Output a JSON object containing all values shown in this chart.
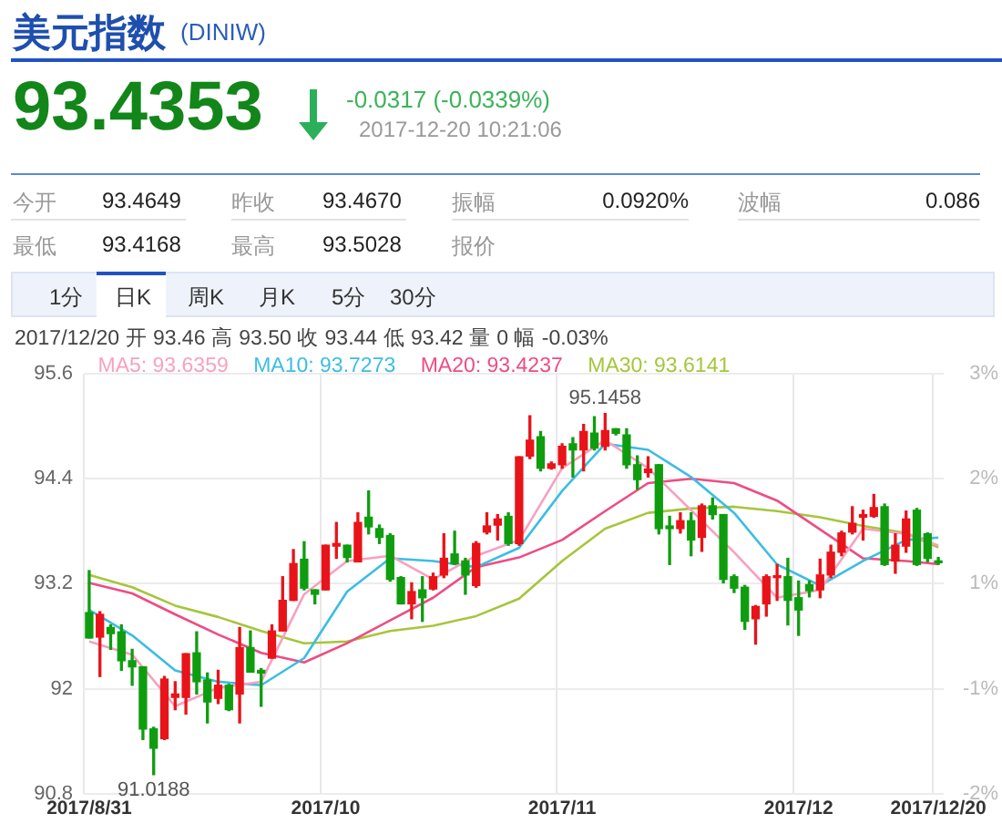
{
  "chart_data": [
    {
      "type": "other",
      "title": "美元指数",
      "subtitle": "(DINIW)",
      "annotations": [
        "93.4353",
        "-0.0317 (-0.0339%)",
        "2017-12-20 10:21:06",
        "今开",
        "93.4649",
        "昨收",
        "93.4670",
        "振幅",
        "0.0920%",
        "波幅",
        "0.086",
        "最低",
        "93.4168",
        "最高",
        "93.5028",
        "报价",
        "1分",
        "日K",
        "周K",
        "月K",
        "5分",
        "30分"
      ]
    },
    {
      "type": "candlestick",
      "categories": [
        "2017/8/31",
        null,
        null,
        null,
        null,
        null,
        null,
        null,
        null,
        null,
        null,
        null,
        null,
        null,
        null,
        null,
        null,
        null,
        null,
        null,
        null,
        null,
        "2017/10",
        null,
        null,
        null,
        null,
        null,
        null,
        null,
        null,
        null,
        null,
        null,
        null,
        null,
        null,
        null,
        null,
        null,
        null,
        null,
        null,
        null,
        "2017/11",
        null,
        null,
        null,
        null,
        null,
        null,
        null,
        null,
        null,
        null,
        null,
        null,
        null,
        null,
        null,
        null,
        null,
        null,
        null,
        null,
        null,
        "2017/12",
        null,
        null,
        null,
        null,
        null,
        null,
        null,
        null,
        null,
        null,
        null,
        null,
        "2017/12/20"
      ],
      "ohlc": [
        [
          92.87,
          93.35,
          92.58,
          92.58
        ],
        [
          92.59,
          92.88,
          92.14,
          92.85
        ],
        [
          92.7,
          92.73,
          92.45,
          92.63
        ],
        [
          92.65,
          92.73,
          92.21,
          92.32
        ],
        [
          92.32,
          92.45,
          92.04,
          92.25
        ],
        [
          92.25,
          92.25,
          91.42,
          91.54
        ],
        [
          91.54,
          91.56,
          91.0188,
          91.32
        ],
        [
          91.43,
          92.14,
          91.42,
          92.11
        ],
        [
          91.9,
          92.08,
          91.76,
          91.94
        ],
        [
          91.9,
          92.4,
          91.71,
          92.4
        ],
        [
          92.41,
          92.65,
          91.94,
          92.08
        ],
        [
          92.1,
          92.18,
          91.61,
          91.85
        ],
        [
          91.89,
          92.21,
          91.83,
          92.04
        ],
        [
          92.04,
          92.05,
          91.75,
          91.76
        ],
        [
          91.94,
          92.7,
          91.61,
          92.47
        ],
        [
          92.47,
          92.66,
          92.19,
          92.19
        ],
        [
          92.21,
          92.23,
          91.8,
          92.18
        ],
        [
          92.35,
          92.73,
          92.35,
          92.66
        ],
        [
          92.66,
          93.28,
          92.66,
          93.01
        ],
        [
          93.01,
          93.59,
          93.01,
          93.43
        ],
        [
          93.48,
          93.68,
          93.13,
          93.15
        ],
        [
          93.13,
          93.13,
          92.97,
          93.08
        ],
        [
          93.13,
          93.64,
          93.13,
          93.64
        ],
        [
          93.63,
          93.9,
          93.49,
          93.66
        ],
        [
          93.64,
          93.64,
          93.45,
          93.5
        ],
        [
          93.45,
          94.01,
          93.45,
          93.9
        ],
        [
          93.96,
          94.26,
          93.77,
          93.85
        ],
        [
          93.83,
          93.87,
          93.66,
          93.73
        ],
        [
          93.75,
          93.77,
          93.23,
          93.25
        ],
        [
          93.27,
          93.28,
          92.97,
          92.97
        ],
        [
          92.97,
          93.21,
          92.8,
          93.11
        ],
        [
          93.13,
          93.28,
          92.77,
          93.04
        ],
        [
          93.14,
          93.32,
          93.13,
          93.28
        ],
        [
          93.3,
          93.77,
          93.27,
          93.49
        ],
        [
          93.54,
          93.8,
          93.42,
          93.43
        ],
        [
          93.46,
          93.49,
          93.08,
          93.3
        ],
        [
          93.18,
          93.68,
          93.16,
          93.66
        ],
        [
          93.79,
          94.01,
          93.77,
          93.86
        ],
        [
          93.87,
          93.99,
          93.7,
          93.94
        ],
        [
          93.97,
          94.01,
          93.64,
          93.66
        ],
        [
          93.66,
          94.65,
          93.64,
          94.65
        ],
        [
          94.66,
          95.12,
          94.63,
          94.84
        ],
        [
          94.88,
          94.94,
          94.49,
          94.52
        ],
        [
          94.52,
          94.59,
          94.51,
          94.57
        ],
        [
          94.56,
          94.8,
          94.52,
          94.77
        ],
        [
          94.8,
          94.87,
          94.42,
          94.73
        ],
        [
          94.73,
          95.02,
          94.49,
          94.94
        ],
        [
          94.92,
          95.11,
          94.73,
          94.75
        ],
        [
          94.77,
          95.1458,
          94.73,
          94.95
        ],
        [
          94.97,
          94.97,
          94.9,
          94.92
        ],
        [
          94.9,
          94.97,
          94.52,
          94.56
        ],
        [
          94.56,
          94.66,
          94.28,
          94.39
        ],
        [
          94.47,
          94.65,
          94.42,
          94.51
        ],
        [
          94.56,
          94.56,
          93.77,
          93.83
        ],
        [
          93.86,
          93.97,
          93.42,
          93.83
        ],
        [
          93.83,
          94.01,
          93.78,
          93.92
        ],
        [
          93.92,
          94.01,
          93.52,
          93.7
        ],
        [
          93.73,
          94.11,
          93.57,
          94.09
        ],
        [
          94.09,
          94.18,
          93.94,
          93.99
        ],
        [
          93.99,
          93.99,
          93.21,
          93.25
        ],
        [
          93.28,
          93.3,
          93.1,
          93.15
        ],
        [
          93.16,
          93.18,
          92.68,
          92.77
        ],
        [
          92.8,
          92.95,
          92.51,
          92.94
        ],
        [
          92.97,
          93.3,
          92.83,
          93.28
        ],
        [
          93.27,
          93.42,
          93.01,
          93.28
        ],
        [
          93.28,
          93.49,
          92.73,
          93.01
        ],
        [
          93.04,
          93.23,
          92.61,
          92.9
        ],
        [
          93.19,
          93.23,
          93.05,
          93.12
        ],
        [
          93.13,
          93.48,
          93.04,
          93.3
        ],
        [
          93.3,
          93.64,
          93.27,
          93.56
        ],
        [
          93.56,
          93.8,
          93.52,
          93.78
        ],
        [
          93.79,
          94.08,
          93.77,
          93.89
        ],
        [
          93.96,
          94.04,
          93.7,
          93.99
        ],
        [
          93.97,
          94.22,
          93.96,
          94.07
        ],
        [
          94.08,
          94.11,
          93.41,
          93.42
        ],
        [
          93.46,
          93.77,
          93.32,
          93.64
        ],
        [
          93.63,
          94.03,
          93.56,
          93.94
        ],
        [
          94.04,
          94.06,
          93.41,
          93.42
        ],
        [
          93.77,
          93.78,
          93.45,
          93.49
        ],
        [
          93.46,
          93.5,
          93.42,
          93.44
        ]
      ],
      "colors": [
        "#0f9d0f",
        "#e8141a",
        "#0f9d0f",
        "#0f9d0f",
        "#0f9d0f",
        "#0f9d0f",
        "#0f9d0f",
        "#e8141a",
        "#e8141a",
        "#e8141a",
        "#0f9d0f",
        "#0f9d0f",
        "#e8141a",
        "#0f9d0f",
        "#e8141a",
        "#0f9d0f",
        "#0f9d0f",
        "#e8141a",
        "#e8141a",
        "#e8141a",
        "#0f9d0f",
        "#0f9d0f",
        "#e8141a",
        "#e8141a",
        "#0f9d0f",
        "#e8141a",
        "#0f9d0f",
        "#0f9d0f",
        "#0f9d0f",
        "#0f9d0f",
        "#e8141a",
        "#0f9d0f",
        "#e8141a",
        "#e8141a",
        "#0f9d0f",
        "#0f9d0f",
        "#e8141a",
        "#e8141a",
        "#e8141a",
        "#0f9d0f",
        "#e8141a",
        "#e8141a",
        "#0f9d0f",
        "#e8141a",
        "#e8141a",
        "#0f9d0f",
        "#e8141a",
        "#0f9d0f",
        "#e8141a",
        "#0f9d0f",
        "#0f9d0f",
        "#0f9d0f",
        "#e8141a",
        "#0f9d0f",
        "#0f9d0f",
        "#e8141a",
        "#0f9d0f",
        "#e8141a",
        "#0f9d0f",
        "#0f9d0f",
        "#0f9d0f",
        "#0f9d0f",
        "#e8141a",
        "#e8141a",
        "#e8141a",
        "#0f9d0f",
        "#0f9d0f",
        "#0f9d0f",
        "#e8141a",
        "#e8141a",
        "#e8141a",
        "#e8141a",
        "#e8141a",
        "#e8141a",
        "#0f9d0f",
        "#e8141a",
        "#e8141a",
        "#0f9d0f",
        "#0f9d0f",
        "#0f9d0f"
      ],
      "series": [
        {
          "type": "line",
          "name": "MA5: 93.6359",
          "color": "#f7a1bf",
          "values": [
            92.54,
            null,
            null,
            null,
            92.39,
            null,
            null,
            null,
            91.8,
            null,
            null,
            null,
            92.01,
            null,
            null,
            null,
            92.08,
            null,
            null,
            null,
            93.08,
            null,
            null,
            null,
            93.46,
            null,
            null,
            null,
            93.52,
            null,
            null,
            null,
            93.25,
            null,
            null,
            null,
            93.52,
            null,
            null,
            null,
            93.7,
            null,
            null,
            null,
            94.52,
            null,
            null,
            null,
            94.84,
            null,
            null,
            null,
            94.52,
            null,
            null,
            null,
            94.04,
            null,
            null,
            null,
            93.56,
            null,
            null,
            null,
            93.04,
            null,
            null,
            null,
            93.13,
            null,
            null,
            null,
            93.83,
            null,
            null,
            null,
            93.77,
            null,
            null,
            93.6359
          ]
        },
        {
          "type": "line",
          "name": "MA10: 93.7273",
          "color": "#3bbde3",
          "values": [
            92.9,
            null,
            null,
            null,
            92.61,
            null,
            null,
            null,
            92.21,
            null,
            null,
            null,
            92.08,
            null,
            null,
            null,
            92.04,
            null,
            null,
            null,
            92.35,
            null,
            null,
            null,
            93.11,
            null,
            null,
            null,
            93.49,
            null,
            null,
            null,
            93.46,
            null,
            null,
            null,
            93.39,
            null,
            null,
            null,
            93.61,
            null,
            null,
            null,
            94.26,
            null,
            null,
            null,
            94.8,
            null,
            null,
            null,
            94.73,
            null,
            null,
            null,
            94.42,
            null,
            null,
            null,
            94.01,
            null,
            null,
            null,
            93.42,
            null,
            null,
            null,
            93.18,
            null,
            null,
            null,
            93.46,
            null,
            null,
            null,
            93.7,
            null,
            null,
            93.7273
          ]
        },
        {
          "type": "line",
          "name": "MA20: 93.4237",
          "color": "#ee4c82",
          "values": [
            93.21,
            null,
            null,
            null,
            93.09,
            null,
            null,
            null,
            92.85,
            null,
            null,
            null,
            92.62,
            null,
            null,
            null,
            92.41,
            null,
            null,
            null,
            92.3,
            null,
            null,
            null,
            92.52,
            null,
            null,
            null,
            92.78,
            null,
            null,
            null,
            93.04,
            null,
            null,
            null,
            93.39,
            null,
            null,
            null,
            93.5,
            null,
            null,
            null,
            93.7,
            null,
            null,
            null,
            94.03,
            null,
            null,
            null,
            94.35,
            null,
            null,
            null,
            94.4,
            null,
            null,
            null,
            94.35,
            null,
            null,
            null,
            94.15,
            null,
            null,
            null,
            93.82,
            null,
            null,
            null,
            93.49,
            null,
            null,
            null,
            93.46,
            null,
            null,
            93.4237
          ]
        },
        {
          "type": "line",
          "name": "MA30: 93.6141",
          "color": "#a5c63b",
          "values": [
            93.3,
            null,
            null,
            null,
            93.16,
            null,
            null,
            null,
            92.95,
            null,
            null,
            null,
            92.82,
            null,
            null,
            null,
            92.66,
            null,
            null,
            null,
            92.52,
            null,
            null,
            null,
            92.54,
            null,
            null,
            null,
            92.66,
            null,
            null,
            null,
            92.72,
            null,
            null,
            null,
            92.83,
            null,
            null,
            null,
            93.03,
            null,
            null,
            null,
            93.46,
            null,
            null,
            null,
            93.83,
            null,
            null,
            null,
            94.01,
            null,
            null,
            null,
            94.06,
            null,
            null,
            null,
            94.08,
            null,
            null,
            null,
            94.03,
            null,
            null,
            null,
            93.96,
            null,
            null,
            null,
            93.86,
            null,
            null,
            null,
            93.78,
            null,
            null,
            93.6141
          ]
        }
      ],
      "ylim": [
        90.8,
        95.6
      ],
      "yticks": [
        90.8,
        92,
        93.2,
        94.4,
        95.6
      ],
      "grid": true,
      "legend": "top left",
      "annotations": [
        "2017/12/20 开 93.46 高 93.50 收 93.44 低 93.42 量 0 幅 -0.03%",
        "3%",
        "2%",
        "1%",
        "-1%",
        "-2%",
        {
          "text": "95.1458",
          "y": 95.1458
        },
        {
          "text": "91.0188",
          "y": 91.0188
        }
      ]
    }
  ]
}
